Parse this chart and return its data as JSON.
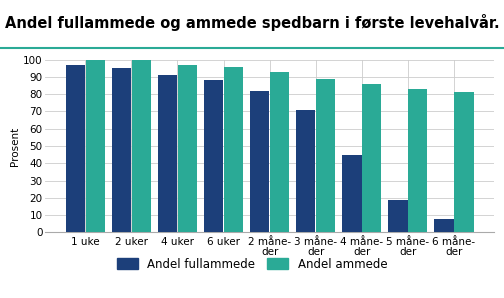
{
  "title": "Andel fullammede og ammede spedbarn i første levehalvår. Prosent",
  "ylabel": "Prosent",
  "categories": [
    "1 uke",
    "2 uker",
    "4 uker",
    "6 uker",
    "2 måne-\nder",
    "3 måne-\nder",
    "4 måne-\nder",
    "5 måne-\nder",
    "6 måne-\nder"
  ],
  "fullammede": [
    97,
    95,
    91,
    88,
    82,
    71,
    45,
    19,
    8
  ],
  "ammede": [
    100,
    100,
    97,
    96,
    93,
    89,
    86,
    83,
    81
  ],
  "color_fullammede": "#1c3f7a",
  "color_ammede": "#2aaa96",
  "legend_fullammede": "Andel fullammede",
  "legend_ammede": "Andel ammede",
  "ylim": [
    0,
    100
  ],
  "yticks": [
    0,
    10,
    20,
    30,
    40,
    50,
    60,
    70,
    80,
    90,
    100
  ],
  "plot_bg": "#ffffff",
  "fig_bg": "#ffffff",
  "title_fontsize": 10.5,
  "ylabel_fontsize": 7.5,
  "tick_fontsize": 7.5,
  "legend_fontsize": 8.5,
  "grid_color": "#cccccc",
  "title_line_color": "#2aaa96",
  "bar_width": 0.42,
  "bar_gap": 0.01
}
